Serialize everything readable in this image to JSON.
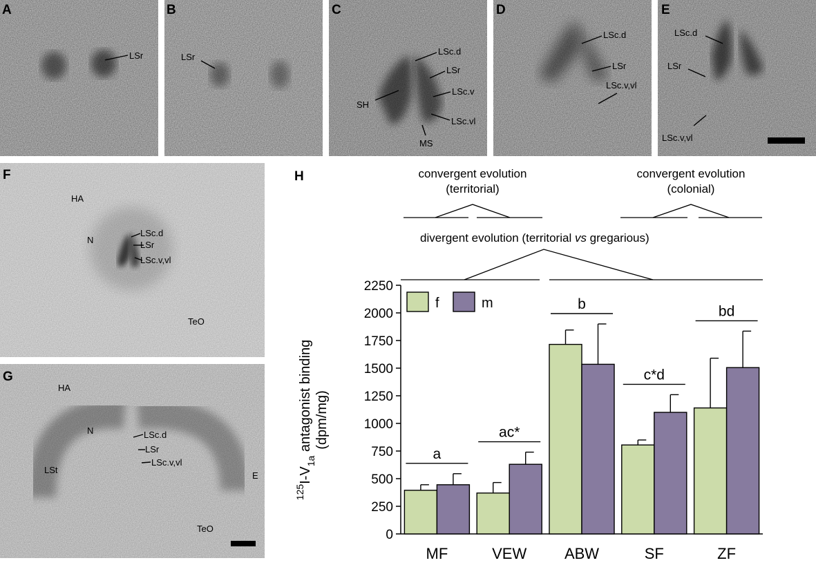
{
  "panels": [
    {
      "id": "A",
      "annotations": [
        {
          "key": "a_lsr",
          "text": "LSr"
        }
      ]
    },
    {
      "id": "B",
      "annotations": [
        {
          "key": "b_lsr",
          "text": "LSr"
        }
      ]
    },
    {
      "id": "C",
      "annotations": [
        {
          "key": "c_lscd",
          "text": "LSc.d"
        },
        {
          "key": "c_lsr",
          "text": "LSr"
        },
        {
          "key": "c_lscv",
          "text": "LSc.v"
        },
        {
          "key": "c_lscvl",
          "text": "LSc.vl"
        },
        {
          "key": "c_sh",
          "text": "SH"
        },
        {
          "key": "c_ms",
          "text": "MS"
        }
      ]
    },
    {
      "id": "D",
      "annotations": [
        {
          "key": "d_lscd",
          "text": "LSc.d"
        },
        {
          "key": "d_lsr",
          "text": "LSr"
        },
        {
          "key": "d_lscvvl",
          "text": "LSc.v,vl"
        }
      ]
    },
    {
      "id": "E",
      "annotations": [
        {
          "key": "e_lscd",
          "text": "LSc.d"
        },
        {
          "key": "e_lsr",
          "text": "LSr"
        },
        {
          "key": "e_lscvvl",
          "text": "LSc.v,vl"
        }
      ]
    },
    {
      "id": "F",
      "annotations": [
        {
          "key": "f_ha",
          "text": "HA"
        },
        {
          "key": "f_n",
          "text": "N"
        },
        {
          "key": "f_lscd",
          "text": "LSc.d"
        },
        {
          "key": "f_lsr",
          "text": "LSr"
        },
        {
          "key": "f_lscvvl",
          "text": "LSc.v,vl"
        },
        {
          "key": "f_teo",
          "text": "TeO"
        }
      ]
    },
    {
      "id": "G",
      "annotations": [
        {
          "key": "g_ha",
          "text": "HA"
        },
        {
          "key": "g_n",
          "text": "N"
        },
        {
          "key": "g_lscd",
          "text": "LSc.d"
        },
        {
          "key": "g_lsr",
          "text": "LSr"
        },
        {
          "key": "g_lscvvl",
          "text": "LSc.v,vl"
        },
        {
          "key": "g_lst",
          "text": "LSt"
        },
        {
          "key": "g_e",
          "text": "E"
        },
        {
          "key": "g_teo",
          "text": "TeO"
        }
      ]
    }
  ],
  "panel_h": {
    "label": "H",
    "tree": {
      "convergent_territorial": [
        "convergent evolution",
        "(territorial)"
      ],
      "convergent_colonial": [
        "convergent evolution",
        "(colonial)"
      ],
      "divergent_prefix": "divergent evolution (territorial ",
      "divergent_vs": "vs",
      "divergent_suffix": " gregarious)"
    },
    "ylabel": {
      "iso_sup": "125",
      "i_v": "I-V",
      "sub": "1a",
      "rest": " antagonist binding",
      "unit": "(dpm/mg)"
    }
  },
  "chart_data": {
    "type": "bar",
    "categories": [
      "MF",
      "VEW",
      "ABW",
      "SF",
      "ZF"
    ],
    "ylim": [
      0,
      2250
    ],
    "yticks": [
      "0",
      "250",
      "500",
      "750",
      "1000",
      "1250",
      "1500",
      "1750",
      "2000",
      "2250"
    ],
    "colors": {
      "f": "#ccdcaa",
      "m": "#877b9f"
    },
    "series": [
      {
        "name": "f",
        "values": [
          395,
          370,
          1715,
          805,
          1140
        ],
        "errors": [
          50,
          95,
          130,
          45,
          450
        ]
      },
      {
        "name": "m",
        "values": [
          445,
          630,
          1535,
          1100,
          1505
        ],
        "errors": [
          100,
          110,
          365,
          160,
          330
        ]
      }
    ],
    "significance": [
      {
        "label": "a",
        "index": 0
      },
      {
        "label": "ac*",
        "index": 1
      },
      {
        "label": "b",
        "index": 2
      },
      {
        "label": "c*d",
        "index": 3
      },
      {
        "label": "bd",
        "index": 4
      }
    ]
  }
}
